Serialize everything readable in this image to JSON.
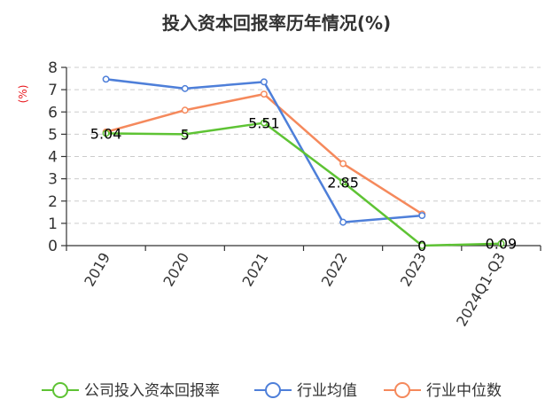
{
  "chart_data": {
    "type": "line",
    "title": "投入资本回报率历年情况(%)",
    "ylabel": "(%)",
    "xlabel": "",
    "categories": [
      "2019",
      "2020",
      "2021",
      "2022",
      "2023",
      "2024Q1-Q3"
    ],
    "ylim": [
      0,
      8
    ],
    "yticks": [
      0,
      1,
      2,
      3,
      4,
      5,
      6,
      7,
      8
    ],
    "grid": true,
    "legend_position": "bottom",
    "series": [
      {
        "name": "公司投入资本回报率",
        "color": "#5ec334",
        "values": [
          5.04,
          5,
          5.51,
          2.85,
          0,
          0.09
        ],
        "labels": [
          "5.04",
          "5",
          "5.51",
          "2.85",
          "0",
          "0.09"
        ],
        "show_labels": true
      },
      {
        "name": "行业均值",
        "color": "#4e7fd9",
        "values": [
          7.47,
          7.05,
          7.35,
          1.05,
          1.35,
          null
        ],
        "show_labels": false
      },
      {
        "name": "行业中位数",
        "color": "#f5895c",
        "values": [
          5.1,
          6.08,
          6.8,
          3.68,
          1.42,
          null
        ],
        "show_labels": false
      }
    ]
  }
}
